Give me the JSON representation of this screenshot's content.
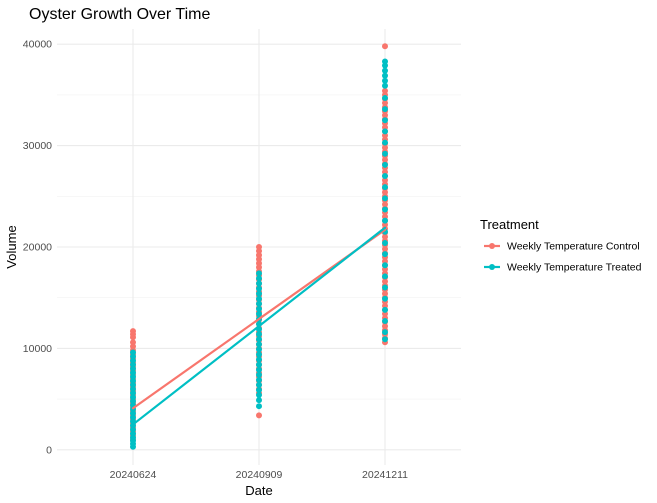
{
  "chart_data": {
    "type": "scatter",
    "title": "Oyster Growth Over Time",
    "xlabel": "Date",
    "ylabel": "Volume",
    "categories": [
      "20240624",
      "20240909",
      "20241211"
    ],
    "y_ticks": [
      "0",
      "10000",
      "20000",
      "30000",
      "40000"
    ],
    "ylim": [
      -1500,
      41500
    ],
    "grid": true,
    "legend": {
      "title": "Treatment",
      "position": "right",
      "entries": [
        "Weekly Temperature Control",
        "Weekly Temperature Treated"
      ]
    },
    "series": [
      {
        "name": "Weekly Temperature Control",
        "color": "#F8766D",
        "trend_line": [
          [
            0,
            4100
          ],
          [
            2,
            21700
          ]
        ],
        "points": [
          [
            0,
            11700
          ],
          [
            0,
            11400
          ],
          [
            0,
            11100
          ],
          [
            0,
            10600
          ],
          [
            0,
            10200
          ],
          [
            0,
            9800
          ],
          [
            0,
            9400
          ],
          [
            0,
            9000
          ],
          [
            0,
            8600
          ],
          [
            0,
            8200
          ],
          [
            0,
            7800
          ],
          [
            0,
            7400
          ],
          [
            0,
            7000
          ],
          [
            0,
            6600
          ],
          [
            0,
            6200
          ],
          [
            0,
            5800
          ],
          [
            0,
            5400
          ],
          [
            0,
            5000
          ],
          [
            0,
            4600
          ],
          [
            0,
            4200
          ],
          [
            0,
            3800
          ],
          [
            0,
            3400
          ],
          [
            0,
            3000
          ],
          [
            0,
            2600
          ],
          [
            0,
            2200
          ],
          [
            0,
            1800
          ],
          [
            0,
            1400
          ],
          [
            0,
            1000
          ],
          [
            1,
            20000
          ],
          [
            1,
            19600
          ],
          [
            1,
            19200
          ],
          [
            1,
            18800
          ],
          [
            1,
            18400
          ],
          [
            1,
            18000
          ],
          [
            1,
            17600
          ],
          [
            1,
            17200
          ],
          [
            1,
            16800
          ],
          [
            1,
            16400
          ],
          [
            1,
            16000
          ],
          [
            1,
            15600
          ],
          [
            1,
            15200
          ],
          [
            1,
            14800
          ],
          [
            1,
            14400
          ],
          [
            1,
            14000
          ],
          [
            1,
            13600
          ],
          [
            1,
            13200
          ],
          [
            1,
            12800
          ],
          [
            1,
            12400
          ],
          [
            1,
            12000
          ],
          [
            1,
            11600
          ],
          [
            1,
            11200
          ],
          [
            1,
            10800
          ],
          [
            1,
            10400
          ],
          [
            1,
            10000
          ],
          [
            1,
            9600
          ],
          [
            1,
            9200
          ],
          [
            1,
            8800
          ],
          [
            1,
            8400
          ],
          [
            1,
            8000
          ],
          [
            1,
            7600
          ],
          [
            1,
            7200
          ],
          [
            1,
            6800
          ],
          [
            1,
            6400
          ],
          [
            1,
            6000
          ],
          [
            1,
            5600
          ],
          [
            1,
            3400
          ],
          [
            2,
            39800
          ],
          [
            2,
            35400
          ],
          [
            2,
            35000
          ],
          [
            2,
            34600
          ],
          [
            2,
            34200
          ],
          [
            2,
            33800
          ],
          [
            2,
            33400
          ],
          [
            2,
            33000
          ],
          [
            2,
            32600
          ],
          [
            2,
            32200
          ],
          [
            2,
            31800
          ],
          [
            2,
            31400
          ],
          [
            2,
            31000
          ],
          [
            2,
            30600
          ],
          [
            2,
            30200
          ],
          [
            2,
            29800
          ],
          [
            2,
            29400
          ],
          [
            2,
            29000
          ],
          [
            2,
            28600
          ],
          [
            2,
            28200
          ],
          [
            2,
            27800
          ],
          [
            2,
            27400
          ],
          [
            2,
            27000
          ],
          [
            2,
            26600
          ],
          [
            2,
            26200
          ],
          [
            2,
            25800
          ],
          [
            2,
            25400
          ],
          [
            2,
            25000
          ],
          [
            2,
            24600
          ],
          [
            2,
            24200
          ],
          [
            2,
            23800
          ],
          [
            2,
            23400
          ],
          [
            2,
            23000
          ],
          [
            2,
            22600
          ],
          [
            2,
            22200
          ],
          [
            2,
            21800
          ],
          [
            2,
            21400
          ],
          [
            2,
            21000
          ],
          [
            2,
            20600
          ],
          [
            2,
            20200
          ],
          [
            2,
            19800
          ],
          [
            2,
            19400
          ],
          [
            2,
            19000
          ],
          [
            2,
            18600
          ],
          [
            2,
            18200
          ],
          [
            2,
            17800
          ],
          [
            2,
            17400
          ],
          [
            2,
            17000
          ],
          [
            2,
            16600
          ],
          [
            2,
            16200
          ],
          [
            2,
            15800
          ],
          [
            2,
            15400
          ],
          [
            2,
            15000
          ],
          [
            2,
            14600
          ],
          [
            2,
            14200
          ],
          [
            2,
            13800
          ],
          [
            2,
            13400
          ],
          [
            2,
            13000
          ],
          [
            2,
            12600
          ],
          [
            2,
            12200
          ],
          [
            2,
            11800
          ],
          [
            2,
            11400
          ],
          [
            2,
            11000
          ],
          [
            2,
            10600
          ]
        ]
      },
      {
        "name": "Weekly Temperature Treated",
        "color": "#00BFC4",
        "trend_line": [
          [
            0,
            2500
          ],
          [
            2,
            21900
          ]
        ],
        "points": [
          [
            0,
            9600
          ],
          [
            0,
            9200
          ],
          [
            0,
            8800
          ],
          [
            0,
            8400
          ],
          [
            0,
            8000
          ],
          [
            0,
            7600
          ],
          [
            0,
            7200
          ],
          [
            0,
            6800
          ],
          [
            0,
            6400
          ],
          [
            0,
            6000
          ],
          [
            0,
            5600
          ],
          [
            0,
            5200
          ],
          [
            0,
            4800
          ],
          [
            0,
            4400
          ],
          [
            0,
            4000
          ],
          [
            0,
            3600
          ],
          [
            0,
            3200
          ],
          [
            0,
            2800
          ],
          [
            0,
            2400
          ],
          [
            0,
            2000
          ],
          [
            0,
            1600
          ],
          [
            0,
            1200
          ],
          [
            0,
            900
          ],
          [
            0,
            600
          ],
          [
            0,
            300
          ],
          [
            1,
            17400
          ],
          [
            1,
            16900
          ],
          [
            1,
            16400
          ],
          [
            1,
            15900
          ],
          [
            1,
            15400
          ],
          [
            1,
            14900
          ],
          [
            1,
            14400
          ],
          [
            1,
            13900
          ],
          [
            1,
            13400
          ],
          [
            1,
            12900
          ],
          [
            1,
            12400
          ],
          [
            1,
            11900
          ],
          [
            1,
            11400
          ],
          [
            1,
            10900
          ],
          [
            1,
            10400
          ],
          [
            1,
            9900
          ],
          [
            1,
            9400
          ],
          [
            1,
            8900
          ],
          [
            1,
            8400
          ],
          [
            1,
            7900
          ],
          [
            1,
            7400
          ],
          [
            1,
            6900
          ],
          [
            1,
            6400
          ],
          [
            1,
            5900
          ],
          [
            1,
            5400
          ],
          [
            1,
            4900
          ],
          [
            1,
            4300
          ],
          [
            2,
            38300
          ],
          [
            2,
            37900
          ],
          [
            2,
            37400
          ],
          [
            2,
            36900
          ],
          [
            2,
            36400
          ],
          [
            2,
            35900
          ],
          [
            2,
            34700
          ],
          [
            2,
            33600
          ],
          [
            2,
            32500
          ],
          [
            2,
            31400
          ],
          [
            2,
            30300
          ],
          [
            2,
            29200
          ],
          [
            2,
            28100
          ],
          [
            2,
            27000
          ],
          [
            2,
            25900
          ],
          [
            2,
            24800
          ],
          [
            2,
            23700
          ],
          [
            2,
            22600
          ],
          [
            2,
            21500
          ],
          [
            2,
            20400
          ],
          [
            2,
            19300
          ],
          [
            2,
            18200
          ],
          [
            2,
            17100
          ],
          [
            2,
            16000
          ],
          [
            2,
            14900
          ],
          [
            2,
            13800
          ],
          [
            2,
            12700
          ],
          [
            2,
            11600
          ],
          [
            2,
            10900
          ]
        ]
      }
    ]
  }
}
